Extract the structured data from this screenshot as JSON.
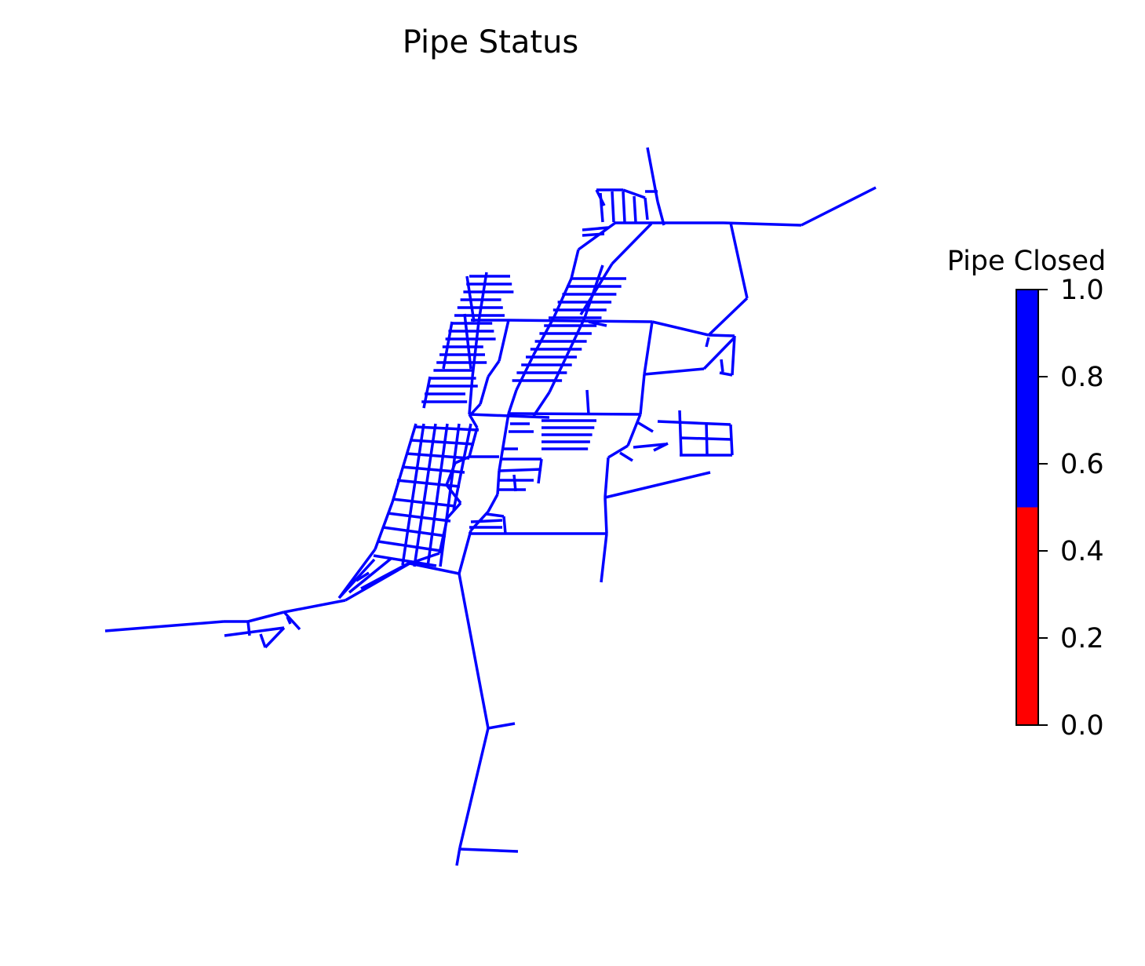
{
  "title": "Pipe Status",
  "colorbar": {
    "title": "Pipe Closed",
    "min": 0.0,
    "max": 1.0,
    "ticks": [
      "0.0",
      "0.2",
      "0.4",
      "0.6",
      "0.8",
      "1.0"
    ],
    "bands": [
      {
        "from": 0.0,
        "to": 0.5,
        "color": "#ff0000"
      },
      {
        "from": 0.5,
        "to": 1.0,
        "color": "#0000ff"
      }
    ]
  },
  "pipe_status_value": 1.0,
  "pipe_color": "#0000ff"
}
